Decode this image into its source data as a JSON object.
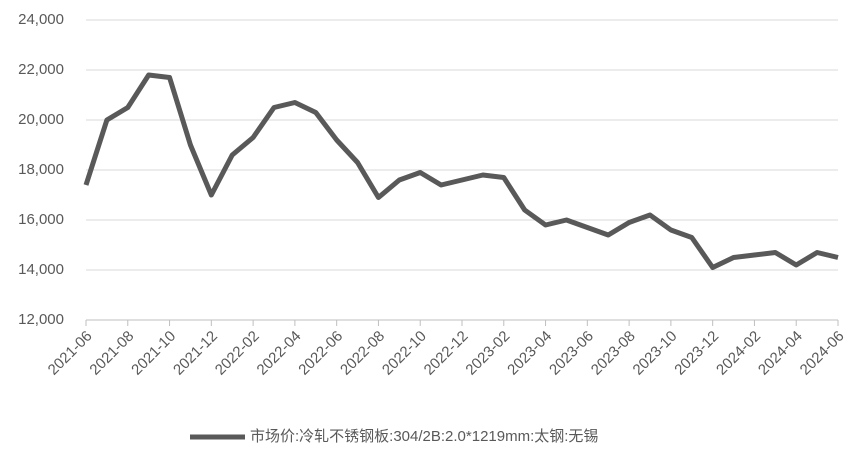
{
  "chart_data": {
    "type": "line",
    "x": [
      "2021-06",
      "2021-07",
      "2021-08",
      "2021-09",
      "2021-10",
      "2021-11",
      "2021-12",
      "2022-01",
      "2022-02",
      "2022-03",
      "2022-04",
      "2022-05",
      "2022-06",
      "2022-07",
      "2022-08",
      "2022-09",
      "2022-10",
      "2022-11",
      "2022-12",
      "2023-01",
      "2023-02",
      "2023-03",
      "2023-04",
      "2023-05",
      "2023-06",
      "2023-07",
      "2023-08",
      "2023-09",
      "2023-10",
      "2023-11",
      "2023-12",
      "2024-01",
      "2024-02",
      "2024-03",
      "2024-04",
      "2024-05",
      "2024-06"
    ],
    "series": [
      {
        "name": "市场价:冷轧不锈钢板:304/2B:2.0*1219mm:太钢:无锡",
        "color": "#595959",
        "values": [
          17400,
          20000,
          20500,
          21800,
          21700,
          19000,
          17000,
          18600,
          19300,
          20500,
          20700,
          20300,
          19200,
          18300,
          16900,
          17600,
          17900,
          17400,
          17600,
          17800,
          17700,
          16400,
          15800,
          16000,
          15700,
          15400,
          15900,
          16200,
          15600,
          15300,
          14100,
          14500,
          14600,
          14700,
          14200,
          14700,
          14500
        ]
      }
    ],
    "xticks": [
      "2021-06",
      "2021-08",
      "2021-10",
      "2021-12",
      "2022-02",
      "2022-04",
      "2022-06",
      "2022-08",
      "2022-10",
      "2022-12",
      "2023-02",
      "2023-04",
      "2023-06",
      "2023-08",
      "2023-10",
      "2023-12",
      "2024-02",
      "2024-04",
      "2024-06"
    ],
    "ylim": [
      12000,
      24000
    ],
    "yticks": [
      {
        "value": 12000,
        "label": "12,000"
      },
      {
        "value": 14000,
        "label": "14,000"
      },
      {
        "value": 16000,
        "label": "16,000"
      },
      {
        "value": 18000,
        "label": "18,000"
      },
      {
        "value": 20000,
        "label": "20,000"
      },
      {
        "value": 22000,
        "label": "22,000"
      },
      {
        "value": 24000,
        "label": "24,000"
      }
    ],
    "grid": true,
    "legend": "bottom"
  }
}
